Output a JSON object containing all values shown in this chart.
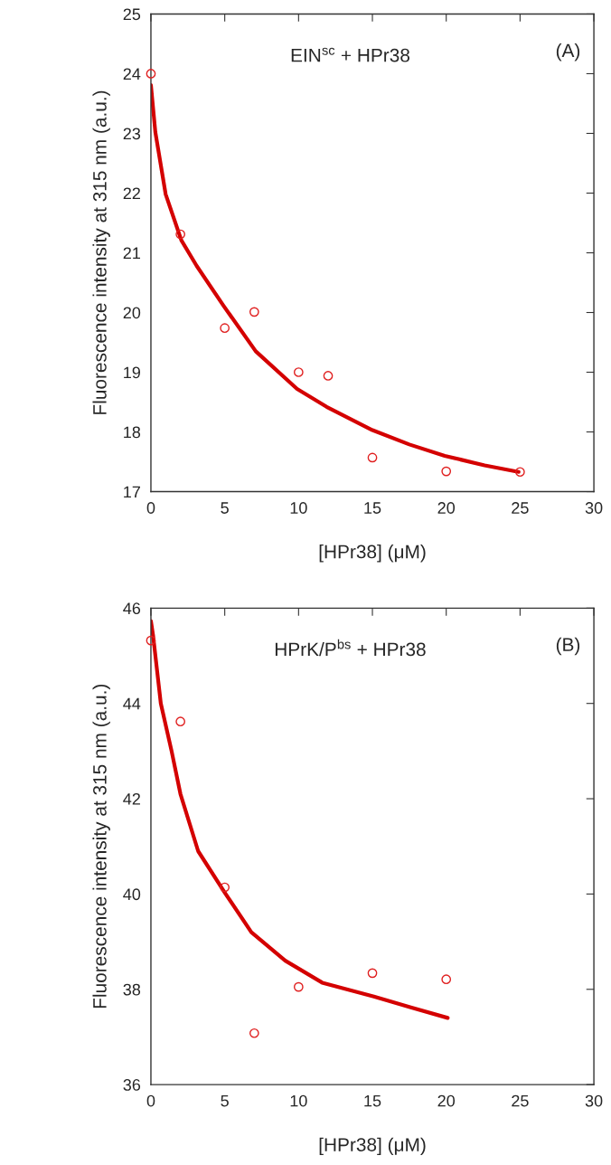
{
  "chart_data": [
    {
      "type": "scatter",
      "xlabel": "[HPr38] (μM)",
      "ylabel": "Fluorescence intensity at 315 nm (a.u.)",
      "annotations": [
        "EIN$^{sc}$ + HPr38",
        "(A)"
      ],
      "xlim": [
        0,
        30
      ],
      "xticks": [
        0,
        5,
        10,
        15,
        20,
        25,
        30
      ],
      "ylim": [
        17,
        25
      ],
      "yticks": [
        17,
        18,
        19,
        20,
        21,
        22,
        23,
        24,
        25
      ],
      "grid": false,
      "legend": false,
      "series": [
        {
          "marker": "circle",
          "color": "#e02020",
          "x": [
            0,
            2,
            5,
            7,
            10,
            12,
            15,
            20,
            25
          ],
          "values": [
            24.0,
            21.31,
            19.74,
            20.01,
            19.0,
            18.94,
            17.57,
            17.34,
            17.33
          ]
        },
        {
          "type": "line",
          "line_style": "solid",
          "color": "#d40000",
          "x": [
            0,
            0.3,
            1.0,
            2.06,
            3.1,
            4.9,
            7.1,
            9.9,
            11.9,
            15.0,
            17.5,
            19.9,
            22.6,
            24.9
          ],
          "values": [
            23.81,
            23.02,
            21.98,
            21.21,
            20.78,
            20.12,
            19.35,
            18.72,
            18.42,
            18.03,
            17.79,
            17.6,
            17.44,
            17.33
          ]
        }
      ]
    },
    {
      "type": "scatter",
      "xlabel": "[HPr38] (μM)",
      "ylabel": "Fluorescence intensity at 315 nm (a.u.)",
      "annotations": [
        "HPrK/P$^{bs}$ + HPr38",
        "(B)"
      ],
      "xlim": [
        0,
        30
      ],
      "xticks": [
        0,
        5,
        10,
        15,
        20,
        25,
        30
      ],
      "ylim": [
        36,
        46
      ],
      "yticks": [
        36,
        38,
        40,
        42,
        44,
        46
      ],
      "grid": false,
      "legend": false,
      "series": [
        {
          "marker": "circle",
          "color": "#e02020",
          "x": [
            0,
            2,
            5,
            7,
            10,
            15,
            20
          ],
          "values": [
            45.32,
            43.62,
            40.14,
            37.08,
            38.05,
            38.34,
            38.21
          ]
        },
        {
          "type": "line",
          "line_style": "solid",
          "color": "#d40000",
          "x": [
            0,
            0.15,
            0.67,
            1.4,
            2.0,
            3.2,
            5.0,
            6.8,
            9.1,
            11.6,
            15.1,
            17.6,
            20.1
          ],
          "values": [
            45.73,
            45.42,
            44.0,
            43.0,
            42.1,
            40.9,
            40.03,
            39.2,
            38.6,
            38.14,
            37.85,
            37.62,
            37.4
          ]
        }
      ]
    }
  ]
}
